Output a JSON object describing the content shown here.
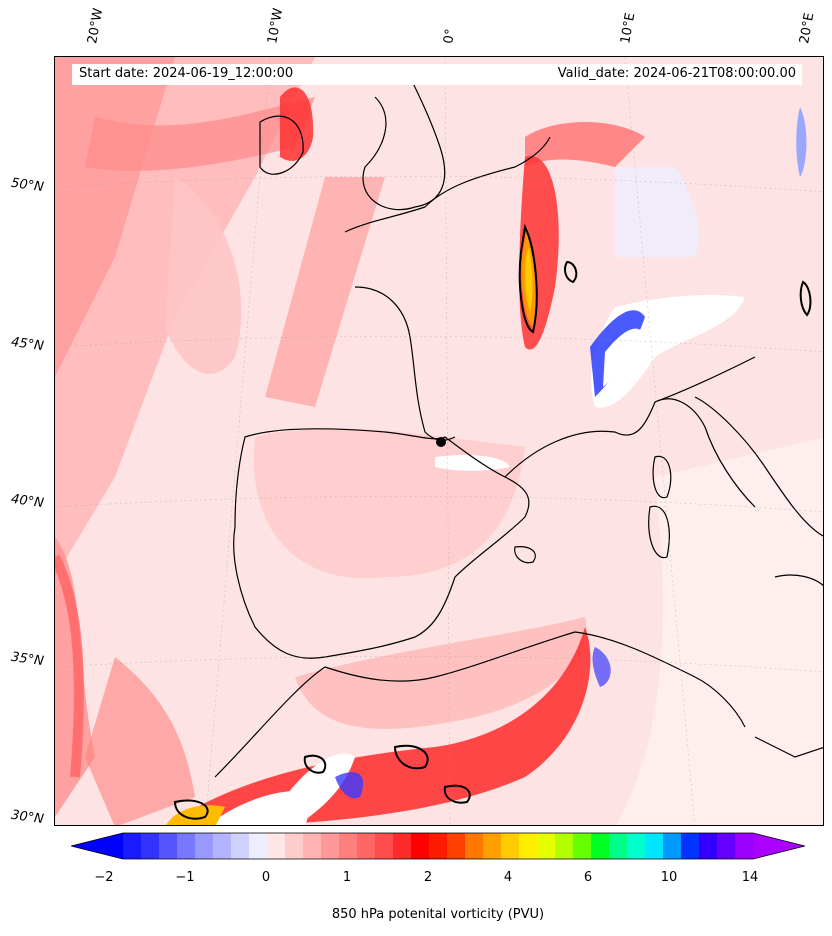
{
  "header": {
    "start_date": "Start date: 2024-06-19_12:00:00",
    "valid_date": "Valid_date: 2024-06-21T08:00:00.00"
  },
  "lon_labels": [
    "20°W",
    "10°W",
    "0°",
    "10°E",
    "20°E"
  ],
  "lat_labels": [
    "50°N",
    "45°N",
    "40°N",
    "35°N",
    "30°N"
  ],
  "colorbar": {
    "label": "850 hPa potenital vorticity (PVU)",
    "ticks": [
      "−2",
      "−1",
      "0",
      "1",
      "2",
      "4",
      "6",
      "10",
      "14"
    ],
    "colors": [
      "#1a1aff",
      "#3333ff",
      "#5555ff",
      "#7777ff",
      "#9999ff",
      "#b3b3ff",
      "#d1d1ff",
      "#eeeeff",
      "#ffe6e6",
      "#ffcccc",
      "#ffb3b3",
      "#ff9999",
      "#ff7f7f",
      "#ff6666",
      "#ff4d4d",
      "#ff2a2a",
      "#ff0000",
      "#ff1a00",
      "#ff4000",
      "#ff7700",
      "#ffa000",
      "#ffcc00",
      "#ffee00",
      "#e6ff00",
      "#b3ff00",
      "#66ff00",
      "#00ff22",
      "#00ff88",
      "#00ffcc",
      "#00e5ff",
      "#0099ff",
      "#0033ff",
      "#3300ff",
      "#6600ff",
      "#9900ff"
    ],
    "under_color": "#0000ff",
    "over_color": "#aa00ff"
  }
}
